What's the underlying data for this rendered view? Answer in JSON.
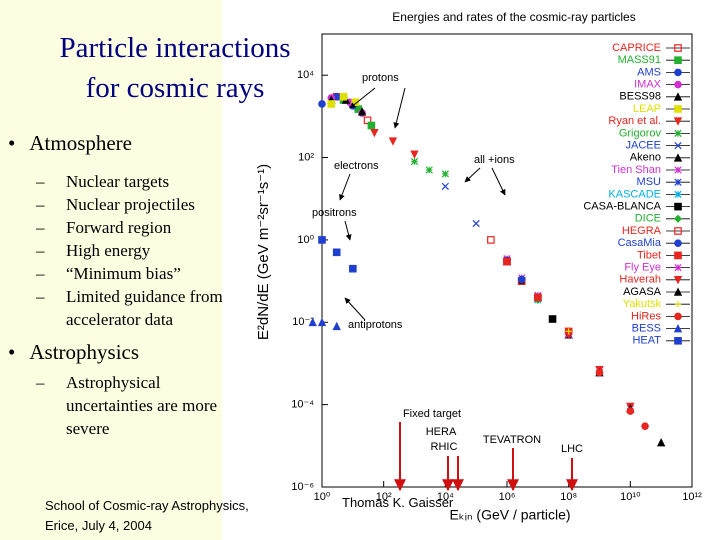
{
  "slide": {
    "title_lines": [
      "Particle interactions",
      "for cosmic rays"
    ],
    "bullets": [
      {
        "text": "Atmosphere",
        "items": [
          "Nuclear targets",
          "Nuclear projectiles",
          "Forward region",
          "High energy",
          "“Minimum bias”",
          "Limited guidance from accelerator data"
        ]
      },
      {
        "text": "Astrophysics",
        "items": [
          "Astrophysical uncertainties are more severe"
        ]
      }
    ],
    "footer_left": [
      "School of Cosmic-ray Astrophysics,",
      "Erice, July 4, 2004"
    ],
    "footer_right": "Thomas K. Gaisser"
  },
  "chart_data": {
    "type": "scatter",
    "title": "Energies and rates of the cosmic-ray particles",
    "x_label": "Eₖᵢₙ (GeV / particle)",
    "y_label": "E²dN/dE (GeV m⁻²sr⁻¹s⁻¹)",
    "xscale": "log",
    "yscale": "log",
    "xlim": [
      1,
      1000000000000
    ],
    "ylim": [
      1e-06,
      100000
    ],
    "xticks": [
      {
        "value": 1,
        "label": "10⁰"
      },
      {
        "value": 100,
        "label": "10²"
      },
      {
        "value": 10000,
        "label": "10⁴"
      },
      {
        "value": 1000000,
        "label": "10⁶"
      },
      {
        "value": 100000000,
        "label": "10⁸"
      },
      {
        "value": 10000000000,
        "label": "10¹⁰"
      },
      {
        "value": 1000000000000,
        "label": "10¹²"
      }
    ],
    "yticks": [
      {
        "value": 10000,
        "label": "10⁴"
      },
      {
        "value": 100,
        "label": "10²"
      },
      {
        "value": 1,
        "label": "10⁰"
      },
      {
        "value": 0.01,
        "label": "10⁻²"
      },
      {
        "value": 0.0001,
        "label": "10⁻⁴"
      },
      {
        "value": 1e-06,
        "label": "10⁻⁶"
      }
    ],
    "annotations": [
      "protons",
      "electrons",
      "positrons",
      "antiprotons",
      "all +ions",
      "Fixed target",
      "HERA",
      "RHIC",
      "TEVATRON",
      "LHC"
    ],
    "series": [
      {
        "name": "CAPRICE",
        "color": "#e8251f",
        "marker": "square-open",
        "x": [
          3,
          10,
          30
        ],
        "values": [
          3000,
          2000,
          800
        ]
      },
      {
        "name": "MASS91",
        "color": "#22b030",
        "marker": "square",
        "x": [
          5,
          15,
          40
        ],
        "values": [
          2500,
          1500,
          600
        ]
      },
      {
        "name": "AMS",
        "color": "#1f3fd0",
        "marker": "circle",
        "x": [
          1,
          3,
          10
        ],
        "values": [
          2000,
          3000,
          1800
        ]
      },
      {
        "name": "IMAX",
        "color": "#d030d0",
        "marker": "circle",
        "x": [
          2,
          8,
          20
        ],
        "values": [
          2800,
          2200,
          1200
        ]
      },
      {
        "name": "BESS98",
        "color": "#000000",
        "marker": "triangle",
        "x": [
          2,
          6,
          20
        ],
        "values": [
          2500,
          2500,
          1300
        ]
      },
      {
        "name": "LEAP",
        "color": "#e0e000",
        "marker": "square",
        "x": [
          2,
          5,
          12
        ],
        "values": [
          2000,
          3000,
          2200
        ]
      },
      {
        "name": "Ryan et al.",
        "color": "#e8251f",
        "marker": "triangle-down",
        "x": [
          50,
          200,
          1000
        ],
        "values": [
          400,
          250,
          120
        ]
      },
      {
        "name": "Grigorov",
        "color": "#22b030",
        "marker": "star",
        "x": [
          1000,
          3000,
          10000
        ],
        "values": [
          80,
          50,
          40
        ]
      },
      {
        "name": "JACEE",
        "color": "#1f3fd0",
        "marker": "x",
        "x": [
          10000,
          100000,
          1000000
        ],
        "values": [
          20,
          2.5,
          0.32
        ]
      },
      {
        "name": "Akeno",
        "color": "#000000",
        "marker": "triangle",
        "x": [
          1000000,
          10000000,
          100000000
        ],
        "values": [
          0.3,
          0.04,
          0.005
        ]
      },
      {
        "name": "Tien Shan",
        "color": "#d030d0",
        "marker": "star",
        "x": [
          1000000,
          3000000,
          10000000
        ],
        "values": [
          0.35,
          0.12,
          0.045
        ]
      },
      {
        "name": "MSU",
        "color": "#1f3fd0",
        "marker": "star",
        "x": [
          1000000,
          10000000
        ],
        "values": [
          0.3,
          0.04
        ]
      },
      {
        "name": "KASCADE",
        "color": "#00b0e0",
        "marker": "star",
        "x": [
          1000000,
          3000000,
          10000000
        ],
        "values": [
          0.3,
          0.1,
          0.035
        ]
      },
      {
        "name": "CASA-BLANCA",
        "color": "#000000",
        "marker": "square",
        "x": [
          3000000,
          10000000,
          30000000
        ],
        "values": [
          0.1,
          0.04,
          0.012
        ]
      },
      {
        "name": "DICE",
        "color": "#22b030",
        "marker": "diamond",
        "x": [
          1000000,
          10000000
        ],
        "values": [
          0.3,
          0.035
        ]
      },
      {
        "name": "HEGRA",
        "color": "#e8251f",
        "marker": "square-open",
        "x": [
          300000,
          1000000,
          3000000
        ],
        "values": [
          1,
          0.3,
          0.1
        ]
      },
      {
        "name": "CasaMia",
        "color": "#1f3fd0",
        "marker": "circle",
        "x": [
          1000000,
          3000000,
          10000000
        ],
        "values": [
          0.32,
          0.11,
          0.04
        ]
      },
      {
        "name": "Tibet",
        "color": "#e8251f",
        "marker": "square",
        "x": [
          1000000,
          10000000,
          100000000
        ],
        "values": [
          0.3,
          0.04,
          0.006
        ]
      },
      {
        "name": "Fly Eye",
        "color": "#d030d0",
        "marker": "star",
        "x": [
          100000000,
          1000000000,
          10000000000
        ],
        "values": [
          0.005,
          0.0006,
          8e-05
        ]
      },
      {
        "name": "Haverah",
        "color": "#e8251f",
        "marker": "triangle-down",
        "x": [
          100000000,
          1000000000,
          10000000000
        ],
        "values": [
          0.005,
          0.0007,
          9e-05
        ]
      },
      {
        "name": "AGASA",
        "color": "#000000",
        "marker": "triangle",
        "x": [
          1000000000,
          10000000000,
          100000000000
        ],
        "values": [
          0.0006,
          8e-05,
          1.2e-05
        ]
      },
      {
        "name": "Yakutsk",
        "color": "#e0e000",
        "marker": "plus",
        "x": [
          100000000,
          1000000000,
          10000000000
        ],
        "values": [
          0.006,
          0.0006,
          7e-05
        ]
      },
      {
        "name": "HiRes",
        "color": "#e8251f",
        "marker": "circle",
        "x": [
          1000000000,
          10000000000,
          30000000000
        ],
        "values": [
          0.0006,
          7e-05,
          3e-05
        ]
      },
      {
        "name": "BESS",
        "color": "#1f3fd0",
        "marker": "triangle",
        "x": [
          0.5,
          1,
          3
        ],
        "values": [
          0.01,
          0.01,
          0.008
        ]
      },
      {
        "name": "HEAT",
        "color": "#1f3fd0",
        "marker": "square",
        "x": [
          1,
          3,
          10
        ],
        "values": [
          1,
          0.5,
          0.2
        ]
      }
    ]
  }
}
